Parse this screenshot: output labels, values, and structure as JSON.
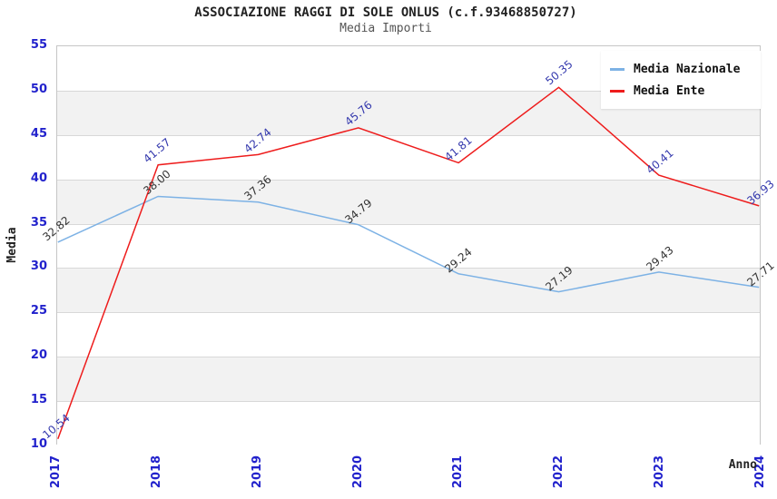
{
  "header": {
    "title": "ASSOCIAZIONE RAGGI DI SOLE ONLUS (c.f.93468850727)",
    "subtitle": "Media Importi"
  },
  "chart_data": {
    "type": "line",
    "title": "ASSOCIAZIONE RAGGI DI SOLE ONLUS (c.f.93468850727)",
    "subtitle": "Media Importi",
    "xlabel": "Anno",
    "ylabel": "Media",
    "categories": [
      "2017",
      "2018",
      "2019",
      "2020",
      "2021",
      "2022",
      "2023",
      "2024"
    ],
    "ylim": [
      10,
      55
    ],
    "ytick_step": 5,
    "grid": true,
    "legend_position": "top-right",
    "axis_tick_color": "#2222cc",
    "band_colors": [
      "#ffffff",
      "#f2f2f2"
    ],
    "series": [
      {
        "name": "Media Nazionale",
        "color": "#7db2e5",
        "label_color": "#333333",
        "values": [
          32.82,
          38.0,
          37.36,
          34.79,
          29.24,
          27.19,
          29.43,
          27.71
        ]
      },
      {
        "name": "Media Ente",
        "color": "#ee1c1c",
        "label_color": "#3338ad",
        "values": [
          10.54,
          41.57,
          42.74,
          45.76,
          41.81,
          50.35,
          40.41,
          36.93
        ]
      }
    ]
  }
}
